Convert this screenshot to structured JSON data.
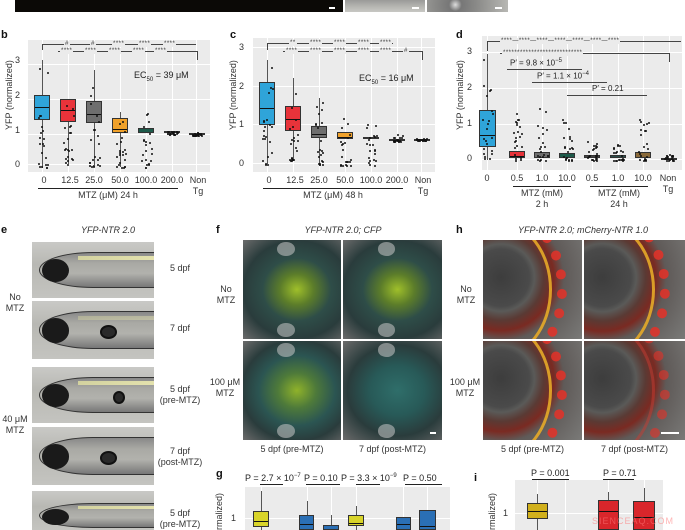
{
  "top_strip": {
    "images": [
      {
        "name": "dark-fluorescence-image",
        "scalebar": true
      },
      {
        "name": "brightfield-image-1",
        "scalebar": true
      },
      {
        "name": "brightfield-image-2",
        "scalebar": true
      }
    ]
  },
  "panels": {
    "b": {
      "letter": "b",
      "ylabel": "YFP (normalized)",
      "yticks": [
        "0",
        "1",
        "2",
        "3"
      ],
      "xticks": [
        "0",
        "12.5",
        "25.0",
        "50.0",
        "100.0",
        "200.0",
        "Non\nTg"
      ],
      "xtick_nontg_line1": "Non",
      "xtick_nontg_line2": "Tg",
      "xgroup": "MTZ (μM) 24 h",
      "annotation": "EC",
      "annotation_sub": "50",
      "annotation_rest": " = 39 μM",
      "sig_row1": [
        "#",
        "#",
        "****",
        "****",
        "****"
      ],
      "sig_row2": [
        "****",
        "****",
        "****",
        "****",
        "****",
        "****"
      ]
    },
    "c": {
      "letter": "c",
      "ylabel": "YFP (normalized)",
      "yticks": [
        "0",
        "1",
        "2",
        "3"
      ],
      "xticks": [
        "0",
        "12.5",
        "25.0",
        "50.0",
        "100.0",
        "200.0"
      ],
      "xtick_nontg_line1": "Non",
      "xtick_nontg_line2": "Tg",
      "xgroup": "MTZ (μM) 48 h",
      "annotation": "EC",
      "annotation_sub": "50",
      "annotation_rest": " = 16 μM",
      "sig_row1": [
        "**",
        "****",
        "****",
        "****",
        "****"
      ],
      "sig_row2": [
        "****",
        "****",
        "****",
        "****",
        "****",
        "#"
      ]
    },
    "d": {
      "letter": "d",
      "ylabel": "YFP (normalized)",
      "yticks": [
        "0",
        "1",
        "2",
        "3"
      ],
      "xticks": [
        "0",
        "0.5",
        "1.0",
        "10.0",
        "0.5",
        "1.0",
        "10.0"
      ],
      "xtick_nontg_line1": "Non",
      "xtick_nontg_line2": "Tg",
      "xgroup1_line1": "MTZ (mM)",
      "xgroup1_line2": "2 h",
      "xgroup2_line1": "MTZ (mM)",
      "xgroup2_line2": "24 h",
      "p1": "P′ = 9.8 × 10",
      "p1_exp": "−5",
      "p2": "P′ = 1.1 × 10",
      "p2_exp": "−4",
      "p3": "P′ = 0.21",
      "sig_row1": "****—****—****—****—****—****—****",
      "sig_row2": "****************************"
    },
    "e": {
      "letter": "e",
      "title": "YFP-NTR 2.0",
      "row1_label": "No\nMTZ",
      "row1_l1": "No",
      "row1_l2": "MTZ",
      "row2_l1": "40 μM",
      "row2_l2": "MTZ",
      "captions": [
        {
          "l1": "5 dpf",
          "l2": ""
        },
        {
          "l1": "7 dpf",
          "l2": ""
        },
        {
          "l1": "5 dpf",
          "l2": "(pre-MTZ)"
        },
        {
          "l1": "7 dpf",
          "l2": "(post-MTZ)"
        },
        {
          "l1": "5 dpf",
          "l2": "(pre-MTZ)"
        }
      ]
    },
    "f": {
      "letter": "f",
      "title": "YFP-NTR 2.0; CFP",
      "row1_l1": "No",
      "row1_l2": "MTZ",
      "row2_l1": "100 μM",
      "row2_l2": "MTZ",
      "col1_caption": "5 dpf (pre-MTZ)",
      "col2_caption": "7 dpf (post-MTZ)"
    },
    "h": {
      "letter": "h",
      "title": "YFP-NTR 2.0; mCherry-NTR 1.0",
      "row1_l1": "No",
      "row1_l2": "MTZ",
      "row2_l1": "100 μM",
      "row2_l2": "MTZ",
      "col1_caption": "5 dpf (pre-MTZ)",
      "col2_caption": "7 dpf (post-MTZ)"
    },
    "g": {
      "letter": "g",
      "ylabel": "normalized)",
      "ytick": "1",
      "pvalues": [
        {
          "text": "P = 2.7 × 10",
          "exp": "−7"
        },
        {
          "text": "P = 0.10",
          "exp": ""
        },
        {
          "text": "P = 3.3 × 10",
          "exp": "−9"
        },
        {
          "text": "P = 0.50",
          "exp": ""
        }
      ]
    },
    "i": {
      "letter": "i",
      "ylabel": "normalized)",
      "ytick": "1",
      "pvalues": [
        "P = 0.001",
        "P = 0.71"
      ]
    }
  },
  "watermark": "SIENCEAQ.COM",
  "colors": {
    "plot_bg": "#ebebeb",
    "box_0": "#2fa4d9",
    "box_12_5": "#e8333a",
    "box_25": "#6e6e6e",
    "box_50": "#f0a12a",
    "box_100": "#1d5a4a",
    "box_yellow": "#d8d42a",
    "box_blue": "#2a6fb5",
    "box_gold": "#d1b01c",
    "box_red": "#d9262b"
  }
}
